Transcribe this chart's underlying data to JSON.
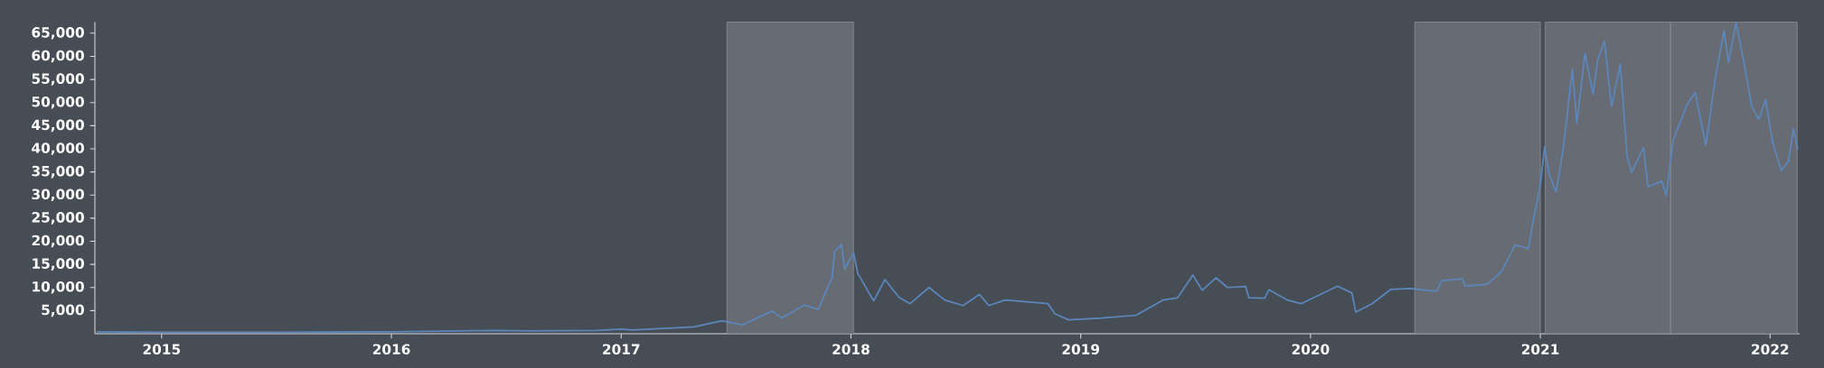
{
  "chart_data": {
    "type": "line",
    "x": [
      "2014-09-20",
      "2015-01-01",
      "2015-03-15",
      "2015-07-02",
      "2015-11-25",
      "2016-01-01",
      "2016-06-14",
      "2016-08-08",
      "2016-11-24",
      "2017-01-01",
      "2017-01-19",
      "2017-04-27",
      "2017-06-10",
      "2017-07-13",
      "2017-08-29",
      "2017-09-13",
      "2017-10-19",
      "2017-11-10",
      "2017-12-02",
      "2017-12-06",
      "2017-12-17",
      "2017-12-22",
      "2018-01-05",
      "2018-01-12",
      "2018-02-06",
      "2018-02-24",
      "2018-03-18",
      "2018-04-05",
      "2018-05-05",
      "2018-05-30",
      "2018-06-28",
      "2018-07-24",
      "2018-08-08",
      "2018-09-03",
      "2018-11-10",
      "2018-11-21",
      "2018-12-13",
      "2019-02-03",
      "2019-03-30",
      "2019-05-12",
      "2019-06-04",
      "2019-06-28",
      "2019-07-13",
      "2019-08-04",
      "2019-08-22",
      "2019-09-20",
      "2019-09-25",
      "2019-10-20",
      "2019-10-27",
      "2019-11-25",
      "2019-12-17",
      "2020-02-13",
      "2020-03-07",
      "2020-03-13",
      "2020-04-08",
      "2020-05-08",
      "2020-06-07",
      "2020-07-20",
      "2020-07-28",
      "2020-08-30",
      "2020-09-03",
      "2020-10-08",
      "2020-10-31",
      "2020-11-22",
      "2020-12-13",
      "2020-12-20",
      "2021-01-01",
      "2021-01-08",
      "2021-01-15",
      "2021-01-26",
      "2021-02-06",
      "2021-02-21",
      "2021-02-28",
      "2021-03-13",
      "2021-03-26",
      "2021-04-02",
      "2021-04-13",
      "2021-04-24",
      "2021-05-08",
      "2021-05-19",
      "2021-05-26",
      "2021-06-14",
      "2021-06-21",
      "2021-07-13",
      "2021-07-20",
      "2021-07-31",
      "2021-08-22",
      "2021-09-04",
      "2021-09-21",
      "2021-10-06",
      "2021-10-20",
      "2021-10-27",
      "2021-11-08",
      "2021-11-22",
      "2021-12-03",
      "2021-12-14",
      "2021-12-25",
      "2022-01-05",
      "2022-01-19",
      "2022-01-30",
      "2022-02-07",
      "2022-02-14"
    ],
    "series": [
      {
        "color": "#5b87bd",
        "values": [
          400,
          300,
          300,
          300,
          400,
          400,
          700,
          600,
          700,
          1000,
          800,
          1500,
          2800,
          1900,
          4900,
          3400,
          6200,
          5300,
          12100,
          17800,
          19300,
          13900,
          17600,
          13000,
          7100,
          11700,
          7900,
          6500,
          10000,
          7300,
          6100,
          8500,
          6100,
          7300,
          6500,
          4300,
          3000,
          3400,
          4000,
          7300,
          7800,
          12700,
          9400,
          12100,
          10000,
          10200,
          7800,
          7700,
          9500,
          7300,
          6500,
          10300,
          8800,
          4700,
          6500,
          9600,
          9800,
          9200,
          11500,
          11900,
          10300,
          10700,
          13400,
          19200,
          18400,
          23800,
          32200,
          40500,
          34500,
          30700,
          39500,
          57200,
          45600,
          60600,
          51800,
          59100,
          63300,
          49100,
          58300,
          38400,
          34900,
          40300,
          31800,
          33000,
          29900,
          41800,
          49500,
          52200,
          40700,
          55300,
          65600,
          58700,
          67200,
          57600,
          49100,
          46400,
          50600,
          41400,
          35300,
          37200,
          44300,
          39900
        ]
      }
    ],
    "xlim": [
      "2014-09-17",
      "2022-02-17"
    ],
    "xticks": [
      {
        "value": "2015-01-01",
        "label": "2015"
      },
      {
        "value": "2016-01-01",
        "label": "2016"
      },
      {
        "value": "2017-01-01",
        "label": "2017"
      },
      {
        "value": "2018-01-01",
        "label": "2018"
      },
      {
        "value": "2019-01-01",
        "label": "2019"
      },
      {
        "value": "2020-01-01",
        "label": "2020"
      },
      {
        "value": "2021-01-01",
        "label": "2021"
      },
      {
        "value": "2022-01-01",
        "label": "2022"
      }
    ],
    "ylim": [
      0,
      67400
    ],
    "yticks": [
      {
        "value": 5000,
        "label": "5,000"
      },
      {
        "value": 10000,
        "label": "10,000"
      },
      {
        "value": 15000,
        "label": "15,000"
      },
      {
        "value": 20000,
        "label": "20,000"
      },
      {
        "value": 25000,
        "label": "25,000"
      },
      {
        "value": 30000,
        "label": "30,000"
      },
      {
        "value": 35000,
        "label": "35,000"
      },
      {
        "value": 40000,
        "label": "40,000"
      },
      {
        "value": 45000,
        "label": "45,000"
      },
      {
        "value": 50000,
        "label": "50,000"
      },
      {
        "value": 55000,
        "label": "55,000"
      },
      {
        "value": 60000,
        "label": "60,000"
      },
      {
        "value": 65000,
        "label": "65,000"
      }
    ],
    "bands": [
      {
        "axis": "x",
        "from": "2017-06-18",
        "to": "2018-01-05",
        "color": "#676b73"
      },
      {
        "axis": "x",
        "from": "2020-06-15",
        "to": "2021-01-01",
        "color": "#676b73"
      },
      {
        "axis": "x",
        "from": "2021-01-09",
        "to": "2021-07-27",
        "color": "#676b73"
      },
      {
        "axis": "x",
        "from": "2021-07-27",
        "to": "2022-02-13",
        "color": "#676b73"
      }
    ],
    "grid": false,
    "marker": "none",
    "line_style": "solid"
  }
}
